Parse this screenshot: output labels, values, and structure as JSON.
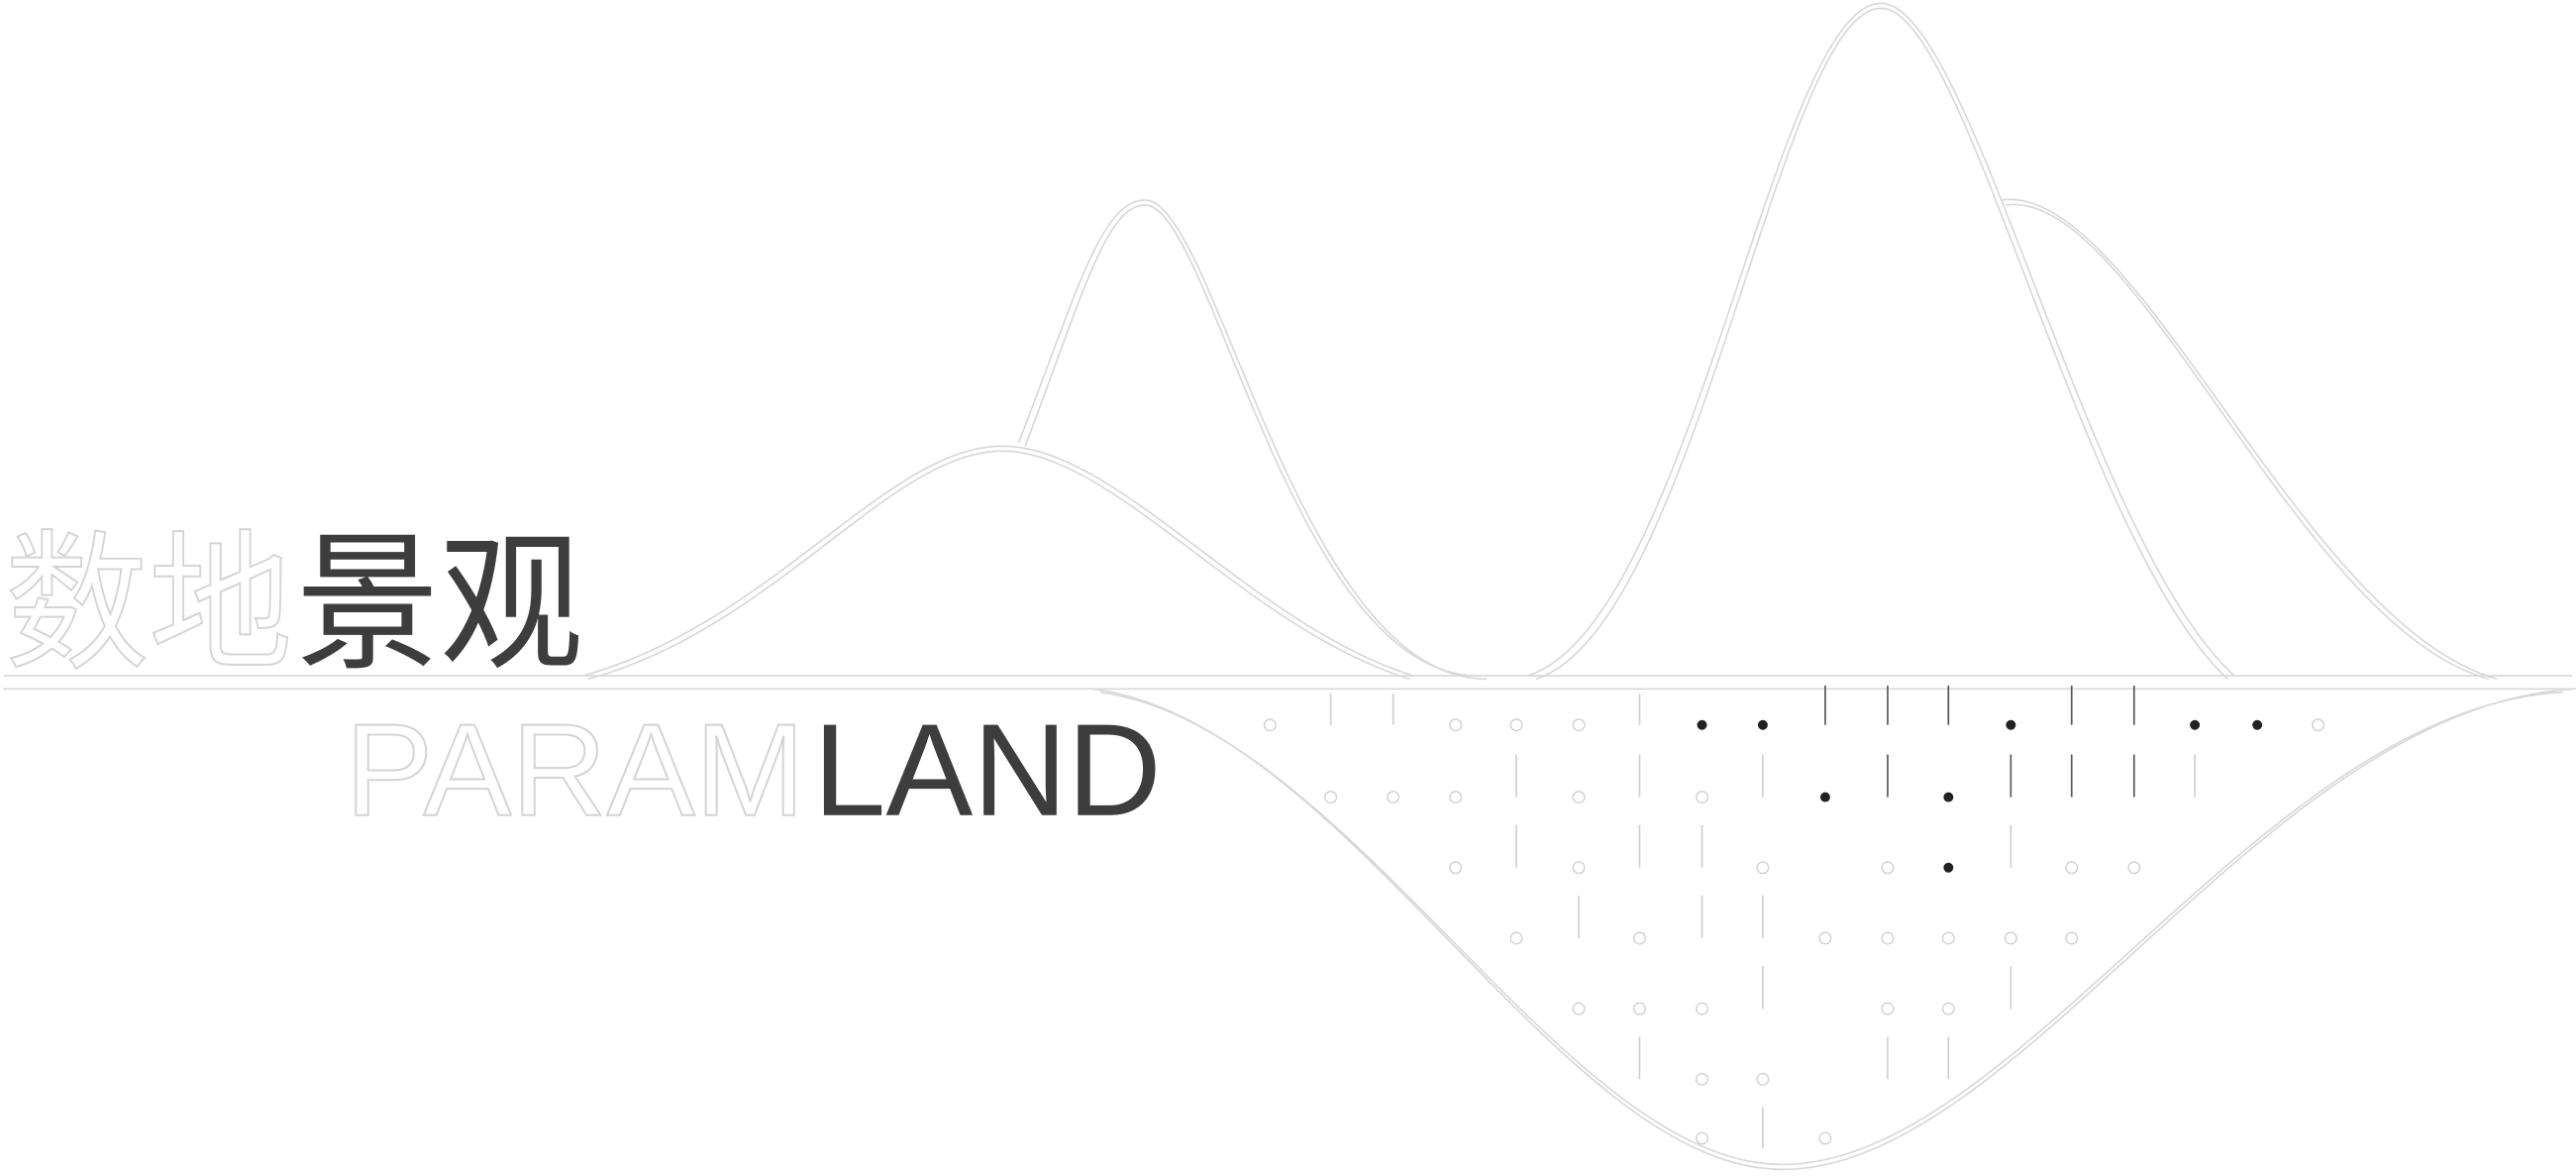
{
  "logo": {
    "title_cn_light": "数地",
    "title_cn_dark": "景观",
    "title_en_light": "PARAM",
    "title_en_dark": "LAND"
  }
}
